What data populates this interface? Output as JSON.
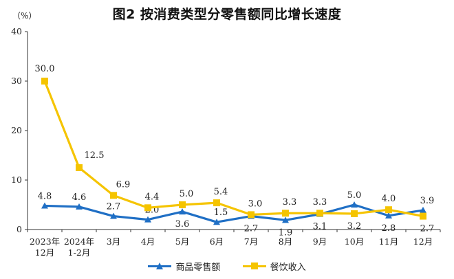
{
  "chart_data": {
    "type": "line",
    "title": "图2  按消费类型分零售额同比增长速度",
    "unit": "（%）",
    "ylim": [
      0,
      40
    ],
    "yticks": [
      "0",
      "10",
      "20",
      "30",
      "40"
    ],
    "categories": [
      "2023年12月",
      "2024年1-2月",
      "3月",
      "4月",
      "5月",
      "6月",
      "7月",
      "8月",
      "9月",
      "10月",
      "11月",
      "12月"
    ],
    "category_lines": [
      [
        "2023年",
        "12月"
      ],
      [
        "2024年",
        "1-2月"
      ],
      [
        "3月"
      ],
      [
        "4月"
      ],
      [
        "5月"
      ],
      [
        "6月"
      ],
      [
        "7月"
      ],
      [
        "8月"
      ],
      [
        "9月"
      ],
      [
        "10月"
      ],
      [
        "11月"
      ],
      [
        "12月"
      ]
    ],
    "series": [
      {
        "name": "商品零售额",
        "color": "#1f6fc5",
        "marker": "triangle",
        "values": [
          4.8,
          4.6,
          2.7,
          2.0,
          3.6,
          1.5,
          2.7,
          1.9,
          3.1,
          5.0,
          2.8,
          3.9
        ],
        "labels": [
          "4.8",
          "4.6",
          "2.7",
          "2.0",
          "3.6",
          "1.5",
          "2.7",
          "1.9",
          "3.1",
          "5.0",
          "2.8",
          "3.9"
        ]
      },
      {
        "name": "餐饮收入",
        "color": "#f5c400",
        "marker": "square",
        "values": [
          30.0,
          12.5,
          6.9,
          4.4,
          5.0,
          5.4,
          3.0,
          3.3,
          3.3,
          3.2,
          4.0,
          2.7
        ],
        "labels": [
          "30.0",
          "12.5",
          "6.9",
          "4.4",
          "5.0",
          "5.4",
          "3.0",
          "3.3",
          "3.3",
          "3.2",
          "4.0",
          "2.7"
        ]
      }
    ],
    "legend_position": "bottom",
    "grid": false
  }
}
